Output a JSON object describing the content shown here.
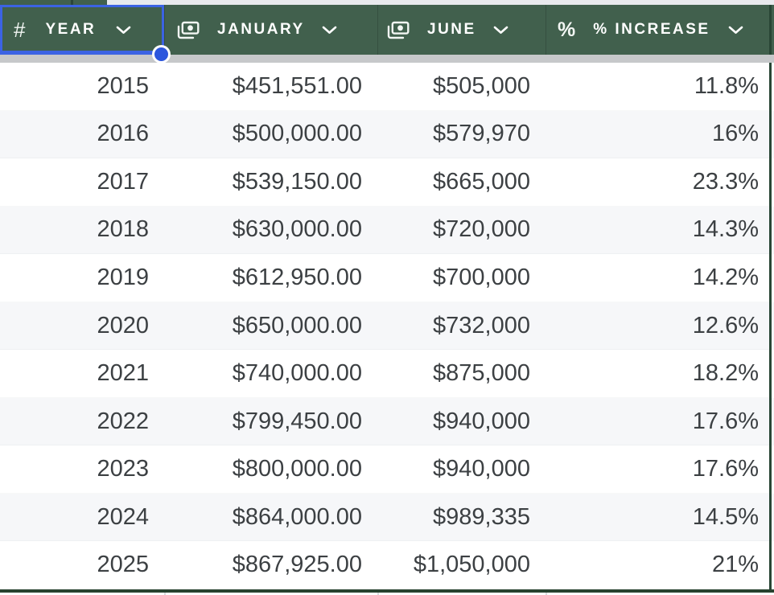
{
  "app": {
    "view": "spreadsheet-table"
  },
  "colors": {
    "header_green": "#41604d",
    "header_divider_green": "#2c4638",
    "table_border_green": "#294635",
    "selection_blue": "#3b63e3",
    "fill_handle_blue": "#2c56dd",
    "frozen_shadow_gray": "#c6c8ca",
    "chrome_gray": "#e8eaed",
    "row_alt_gray": "#f6f7f9",
    "row_text": "#3c4043",
    "header_text": "#ffffff"
  },
  "table": {
    "columns": [
      {
        "field": "year",
        "label": "YEAR",
        "icon": "hash-icon",
        "icon_glyph": "#"
      },
      {
        "field": "january",
        "label": "JANUARY",
        "icon": "banknote-icon"
      },
      {
        "field": "june",
        "label": "JUNE",
        "icon": "banknote-icon"
      },
      {
        "field": "increase",
        "label": "% INCREASE",
        "icon": "percent-icon",
        "icon_glyph": "%"
      }
    ],
    "rows": [
      {
        "year": "2015",
        "january": "$451,551.00",
        "june": "$505,000",
        "increase": "11.8%"
      },
      {
        "year": "2016",
        "january": "$500,000.00",
        "june": "$579,970",
        "increase": "16%"
      },
      {
        "year": "2017",
        "january": "$539,150.00",
        "june": "$665,000",
        "increase": "23.3%"
      },
      {
        "year": "2018",
        "january": "$630,000.00",
        "june": "$720,000",
        "increase": "14.3%"
      },
      {
        "year": "2019",
        "january": "$612,950.00",
        "june": "$700,000",
        "increase": "14.2%"
      },
      {
        "year": "2020",
        "january": "$650,000.00",
        "june": "$732,000",
        "increase": "12.6%"
      },
      {
        "year": "2021",
        "january": "$740,000.00",
        "june": "$875,000",
        "increase": "18.2%"
      },
      {
        "year": "2022",
        "january": "$799,450.00",
        "june": "$940,000",
        "increase": "17.6%"
      },
      {
        "year": "2023",
        "january": "$800,000.00",
        "june": "$940,000",
        "increase": "17.6%"
      },
      {
        "year": "2024",
        "january": "$864,000.00",
        "june": "$989,335",
        "increase": "14.5%"
      },
      {
        "year": "2025",
        "january": "$867,925.00",
        "june": "$1,050,000",
        "increase": "21%"
      }
    ]
  },
  "selection": {
    "selected_header": "YEAR",
    "has_fill_handle": true
  }
}
